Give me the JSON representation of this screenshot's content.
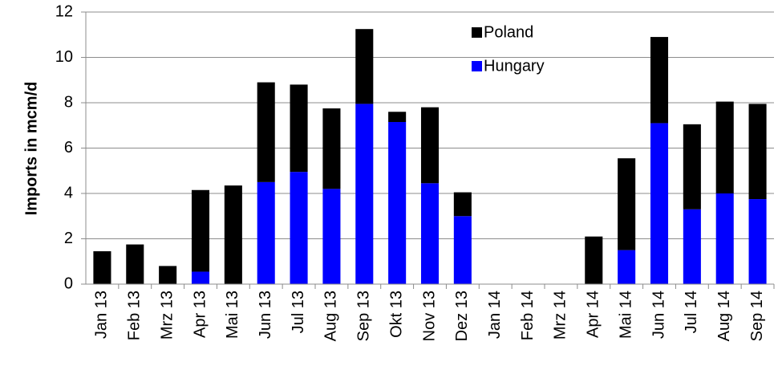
{
  "chart_data": {
    "type": "stacked_bar",
    "y_label": "Imports in mcm/d",
    "categories": [
      "Jan 13",
      "Feb 13",
      "Mrz 13",
      "Apr 13",
      "Mai 13",
      "Jun 13",
      "Jul 13",
      "Aug 13",
      "Sep 13",
      "Okt 13",
      "Nov 13",
      "Dez 13",
      "Jan 14",
      "Feb 14",
      "Mrz 14",
      "Apr 14",
      "Mai 14",
      "Jun 14",
      "Jul 14",
      "Aug 14",
      "Sep 14"
    ],
    "series": [
      {
        "name": "Hungary",
        "color": "#0000ff",
        "values": [
          0,
          0,
          0,
          0.55,
          0,
          4.5,
          4.95,
          4.2,
          7.95,
          7.15,
          4.45,
          3.0,
          0,
          0,
          0,
          0,
          1.5,
          7.1,
          3.3,
          4.0,
          3.75
        ]
      },
      {
        "name": "Poland",
        "color": "#000000",
        "values": [
          1.45,
          1.75,
          0.8,
          3.6,
          4.35,
          4.4,
          3.85,
          3.55,
          3.3,
          0.45,
          3.35,
          1.05,
          0,
          0,
          0,
          2.1,
          4.05,
          3.8,
          3.75,
          4.05,
          4.2
        ]
      }
    ],
    "ylim": [
      0,
      12
    ],
    "yticks": [
      0,
      2,
      4,
      6,
      8,
      10,
      12
    ],
    "grid": true,
    "legend": "top-right"
  }
}
